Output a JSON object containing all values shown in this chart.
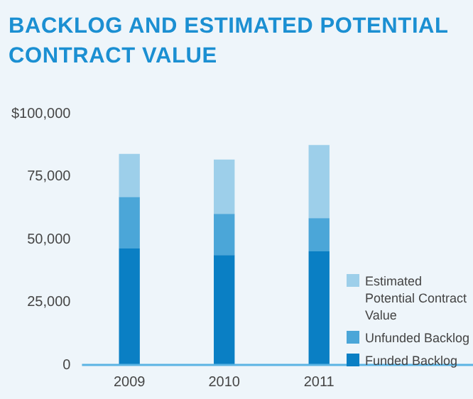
{
  "chart_data": {
    "type": "bar",
    "title": "BACKLOG AND ESTIMATED POTENTIAL CONTRACT VALUE",
    "categories": [
      "2009",
      "2010",
      "2011"
    ],
    "stacked": true,
    "legend": "bottom right",
    "grid": false,
    "ylim": [
      0,
      100000
    ],
    "yticks": [
      0,
      {
        "value": 25000,
        "label": "25,000"
      },
      {
        "value": 50000,
        "label": "50,000"
      },
      {
        "value": 75000,
        "label": "75,000"
      },
      {
        "value": 100000,
        "label": "$100,000"
      }
    ],
    "series": [
      {
        "name": "Funded Backlog",
        "color": "#0a7fc4",
        "values": [
          46300,
          43700,
          45200
        ]
      },
      {
        "name": "Unfunded Backlog",
        "color": "#4ba6d8",
        "values": [
          20500,
          16400,
          13200
        ]
      },
      {
        "name": "Estimated Potential Contract Value",
        "color": "#9dcfea",
        "values": [
          17200,
          21600,
          29100
        ]
      }
    ]
  }
}
